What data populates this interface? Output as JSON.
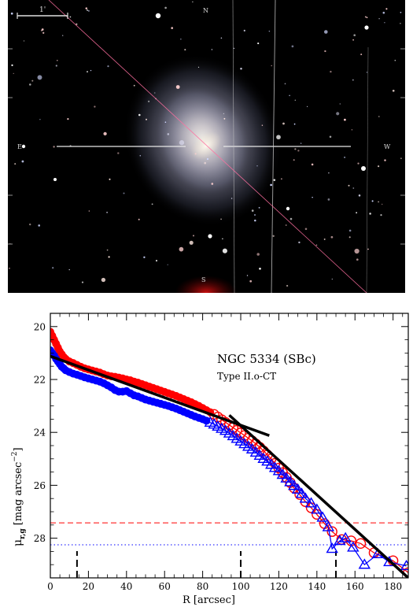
{
  "image_panel": {
    "scale_bar_label": "1'",
    "compass": {
      "north": "N",
      "east": "E",
      "west": "W",
      "south": "S"
    }
  },
  "chart_data": {
    "type": "scatter",
    "title": "NGC 5334 (SBc)",
    "subtitle": "Type II.o-CT",
    "xlabel": "R [arcsec]",
    "ylabel": "μ_{r,g} [mag arcsec^{-2}]",
    "ylabel_main": "μ",
    "ylabel_sub": "r,g",
    "ylabel_units_open": " [mag arcsec",
    "ylabel_units_exp": "−2",
    "ylabel_units_close": "]",
    "xlim": [
      0,
      188
    ],
    "ylim": [
      29.5,
      19.5
    ],
    "y_inverted": true,
    "xticks": [
      0,
      20,
      40,
      60,
      80,
      100,
      120,
      140,
      160,
      180
    ],
    "yticks": [
      20,
      22,
      24,
      26,
      28
    ],
    "colors": {
      "r": "#ff0000",
      "g": "#0000ff",
      "fit": "#000000"
    },
    "series": [
      {
        "band": "r",
        "inner_dense": [
          [
            0,
            20.2
          ],
          [
            1,
            20.35
          ],
          [
            2,
            20.5
          ],
          [
            3,
            20.65
          ],
          [
            4,
            20.8
          ],
          [
            5,
            20.95
          ],
          [
            6,
            21.05
          ],
          [
            7,
            21.15
          ],
          [
            8,
            21.22
          ],
          [
            10,
            21.32
          ],
          [
            12,
            21.38
          ],
          [
            14,
            21.45
          ],
          [
            16,
            21.52
          ],
          [
            18,
            21.58
          ],
          [
            20,
            21.62
          ],
          [
            22,
            21.66
          ],
          [
            24,
            21.7
          ],
          [
            26,
            21.74
          ],
          [
            28,
            21.8
          ],
          [
            30,
            21.85
          ],
          [
            32,
            21.88
          ],
          [
            34,
            21.9
          ],
          [
            36,
            21.93
          ],
          [
            38,
            21.96
          ],
          [
            40,
            22.0
          ],
          [
            42,
            22.03
          ],
          [
            44,
            22.08
          ],
          [
            46,
            22.12
          ],
          [
            48,
            22.17
          ],
          [
            50,
            22.22
          ],
          [
            52,
            22.27
          ],
          [
            54,
            22.32
          ],
          [
            56,
            22.37
          ],
          [
            58,
            22.42
          ],
          [
            60,
            22.47
          ],
          [
            62,
            22.52
          ],
          [
            64,
            22.57
          ],
          [
            66,
            22.62
          ],
          [
            68,
            22.68
          ],
          [
            70,
            22.74
          ],
          [
            72,
            22.8
          ],
          [
            74,
            22.86
          ],
          [
            76,
            22.93
          ],
          [
            78,
            23.0
          ],
          [
            80,
            23.08
          ],
          [
            82,
            23.16
          ],
          [
            84,
            23.24
          ]
        ],
        "outer_points": [
          [
            86,
            23.32
          ],
          [
            88,
            23.42
          ],
          [
            90,
            23.52
          ],
          [
            92,
            23.62
          ],
          [
            94,
            23.72
          ],
          [
            96,
            23.82
          ],
          [
            98,
            23.92
          ],
          [
            100,
            24.02
          ],
          [
            102,
            24.12
          ],
          [
            104,
            24.22
          ],
          [
            106,
            24.32
          ],
          [
            108,
            24.44
          ],
          [
            110,
            24.56
          ],
          [
            112,
            24.7
          ],
          [
            114,
            24.85
          ],
          [
            116,
            25.0
          ],
          [
            118,
            25.17
          ],
          [
            120,
            25.35
          ],
          [
            122,
            25.52
          ],
          [
            124,
            25.7
          ],
          [
            126,
            25.9
          ],
          [
            128,
            26.1
          ],
          [
            131,
            26.35
          ],
          [
            134,
            26.62
          ],
          [
            137,
            26.85
          ],
          [
            140,
            27.1
          ],
          [
            144,
            27.45
          ],
          [
            148,
            27.75
          ],
          [
            153,
            28.05
          ],
          [
            158,
            28.1
          ],
          [
            163,
            28.2
          ],
          [
            170,
            28.55
          ],
          [
            180,
            28.85
          ],
          [
            188,
            29.3
          ]
        ]
      },
      {
        "band": "g",
        "inner_dense": [
          [
            0,
            20.9
          ],
          [
            1,
            21.0
          ],
          [
            2,
            21.1
          ],
          [
            3,
            21.22
          ],
          [
            4,
            21.32
          ],
          [
            5,
            21.42
          ],
          [
            6,
            21.52
          ],
          [
            7,
            21.58
          ],
          [
            8,
            21.65
          ],
          [
            10,
            21.72
          ],
          [
            12,
            21.78
          ],
          [
            14,
            21.82
          ],
          [
            16,
            21.87
          ],
          [
            18,
            21.92
          ],
          [
            20,
            21.96
          ],
          [
            22,
            22.0
          ],
          [
            24,
            22.04
          ],
          [
            26,
            22.08
          ],
          [
            28,
            22.14
          ],
          [
            30,
            22.22
          ],
          [
            32,
            22.3
          ],
          [
            34,
            22.4
          ],
          [
            36,
            22.46
          ],
          [
            38,
            22.46
          ],
          [
            40,
            22.44
          ],
          [
            42,
            22.52
          ],
          [
            44,
            22.6
          ],
          [
            46,
            22.64
          ],
          [
            48,
            22.7
          ],
          [
            50,
            22.76
          ],
          [
            52,
            22.8
          ],
          [
            54,
            22.84
          ],
          [
            56,
            22.88
          ],
          [
            58,
            22.92
          ],
          [
            60,
            22.96
          ],
          [
            62,
            23.0
          ],
          [
            64,
            23.05
          ],
          [
            66,
            23.1
          ],
          [
            68,
            23.16
          ],
          [
            70,
            23.22
          ],
          [
            72,
            23.28
          ],
          [
            74,
            23.34
          ],
          [
            76,
            23.4
          ],
          [
            78,
            23.45
          ],
          [
            80,
            23.5
          ],
          [
            82,
            23.56
          ]
        ],
        "outer_points": [
          [
            84,
            23.63
          ],
          [
            86,
            23.7
          ],
          [
            88,
            23.78
          ],
          [
            90,
            23.86
          ],
          [
            92,
            23.94
          ],
          [
            94,
            24.04
          ],
          [
            96,
            24.14
          ],
          [
            98,
            24.24
          ],
          [
            100,
            24.34
          ],
          [
            102,
            24.44
          ],
          [
            104,
            24.54
          ],
          [
            106,
            24.64
          ],
          [
            108,
            24.76
          ],
          [
            110,
            24.88
          ],
          [
            112,
            25.0
          ],
          [
            114,
            25.1
          ],
          [
            116,
            25.22
          ],
          [
            118,
            25.34
          ],
          [
            120,
            25.46
          ],
          [
            122,
            25.6
          ],
          [
            124,
            25.74
          ],
          [
            126,
            25.88
          ],
          [
            128,
            26.02
          ],
          [
            130,
            26.16
          ],
          [
            132,
            26.32
          ],
          [
            134,
            26.5
          ],
          [
            137,
            26.68
          ],
          [
            140,
            26.92
          ],
          [
            143,
            27.22
          ],
          [
            146,
            27.58
          ],
          [
            148,
            28.4
          ],
          [
            152,
            28.1
          ],
          [
            155,
            28.0
          ],
          [
            159,
            28.35
          ],
          [
            165,
            29.0
          ],
          [
            172,
            28.6
          ],
          [
            178,
            28.9
          ],
          [
            187,
            29.05
          ]
        ]
      }
    ],
    "fits": [
      {
        "x": [
          0,
          115
        ],
        "y": [
          21.12,
          24.12
        ]
      },
      {
        "x": [
          94,
          188
        ],
        "y": [
          23.35,
          29.5
        ]
      }
    ],
    "sky_limits": [
      {
        "band": "r",
        "y": 27.42,
        "style": "dashed"
      },
      {
        "band": "g",
        "y": 28.25,
        "style": "dotted"
      }
    ],
    "vertical_marks": [
      {
        "x": 14,
        "style": "dashed"
      },
      {
        "x": 150,
        "style": "dashed"
      },
      {
        "x": 100,
        "style": "dashed"
      }
    ]
  }
}
